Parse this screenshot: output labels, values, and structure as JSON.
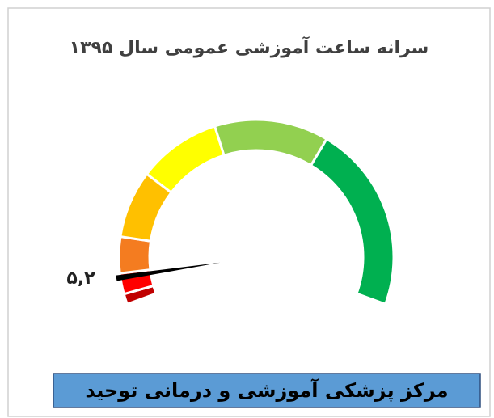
{
  "chart_data": {
    "type": "gauge",
    "title": "سرانه ساعت آموزشی عمومی سال ۱۳۹۵",
    "footer": "مرکز پزشکی آموزشی و درمانی توحید",
    "value": 5.2,
    "value_label": "۵,۲",
    "ylim": [
      0,
      100
    ],
    "bands": [
      {
        "color": "#c00000",
        "values": 2
      },
      {
        "color": "#ff0000",
        "values": 4
      },
      {
        "color": "#f47c20",
        "values": 7
      },
      {
        "color": "#ffc000",
        "values": 13
      },
      {
        "color": "#ffff00",
        "values": 16
      },
      {
        "color": "#92d050",
        "values": 22
      },
      {
        "color": "#00b050",
        "values": 36
      }
    ]
  }
}
